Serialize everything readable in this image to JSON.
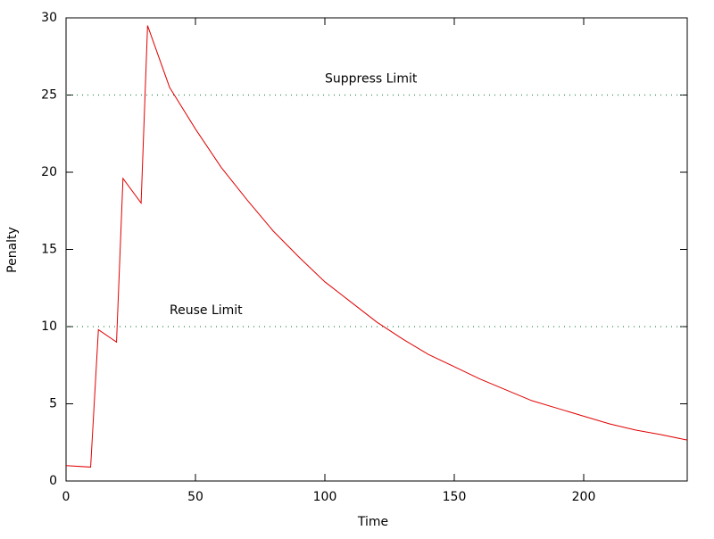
{
  "chart_data": {
    "type": "line",
    "x_label": "Time",
    "y_label": "Penalty",
    "x": [
      0,
      9.5,
      12.5,
      19.5,
      22,
      29,
      31.5,
      40,
      50,
      60,
      70,
      80,
      90,
      100,
      110,
      120,
      130,
      140,
      150,
      160,
      170,
      180,
      190,
      200,
      210,
      220,
      230,
      240
    ],
    "series": [
      {
        "color": "#e00000",
        "values": [
          1,
          0.9,
          9.8,
          9.0,
          19.6,
          18.0,
          29.5,
          25.5,
          22.8,
          20.3,
          18.2,
          16.2,
          14.5,
          12.9,
          11.6,
          10.3,
          9.2,
          8.2,
          7.4,
          6.6,
          5.9,
          5.2,
          4.7,
          4.2,
          3.7,
          3.3,
          3.0,
          2.65
        ]
      }
    ],
    "thresholds": [
      {
        "label": "Suppress Limit",
        "value": 25,
        "color": "#2e8b57"
      },
      {
        "label": "Reuse Limit",
        "value": 10,
        "color": "#2e8b57"
      }
    ],
    "xlim": [
      0,
      240
    ],
    "xticks": [
      0,
      50,
      100,
      150,
      200
    ],
    "ylim": [
      0,
      30
    ],
    "yticks": [
      0,
      5,
      10,
      15,
      20,
      25,
      30
    ]
  }
}
